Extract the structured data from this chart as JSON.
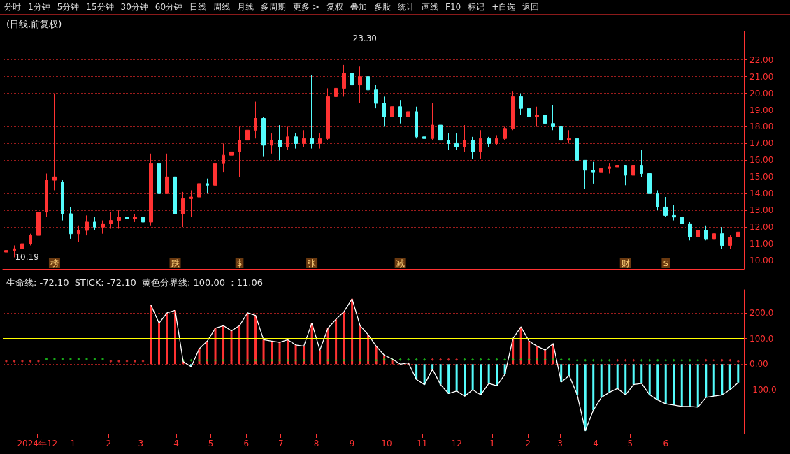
{
  "chart_data": [
    {
      "type": "other",
      "annotations": [
        "分时",
        "1分钟",
        "5分钟",
        "15分钟",
        "30分钟",
        "60分钟",
        "日线",
        "周线",
        "月线",
        "多周期",
        "更多 >",
        "复权",
        "叠加",
        "多股",
        "统计",
        "画线",
        "F10",
        "标记",
        "+自选",
        "返回"
      ]
    },
    {
      "type": "candlestick",
      "title": "(日线,前复权)",
      "x": [
        "2024-11-04",
        "2024-11-11",
        "2024-11-18",
        "2024-11-25",
        "2024-12-02",
        "2024-12-09",
        "2024-12-16",
        "2024-12-23",
        "2024-12-30",
        "2025-01-06",
        "2025-01-13",
        "2025-01-20",
        "2025-01-27",
        "2025-02-03",
        "2025-02-10",
        "2025-02-17",
        "2025-02-24",
        "2025-03-03",
        "2025-03-10",
        "2025-03-17",
        "2025-03-24",
        "2025-03-31",
        "2025-04-07",
        "2025-04-14",
        "2025-04-21",
        "2025-04-28",
        "2025-05-05",
        "2025-05-12",
        "2025-05-19",
        "2025-05-26",
        "2025-06-02",
        "2025-06-09",
        "2025-06-16",
        "2025-06-23",
        "2025-06-30",
        "2025-07-07",
        "2025-07-14",
        "2025-07-21",
        "2025-07-28",
        "2025-08-04",
        "2025-08-11",
        "2025-08-18",
        "2025-08-25",
        "2025-09-01",
        "2025-09-08",
        "2025-09-15",
        "2025-09-22",
        "2025-09-29",
        "2025-10-06",
        "2025-10-13",
        "2025-10-20",
        "2025-10-27",
        "2025-11-03",
        "2025-11-10",
        "2025-11-17",
        "2025-11-24",
        "2025-12-01",
        "2025-12-08",
        "2025-12-15",
        "2025-12-22",
        "2025-12-29",
        "2026-01-05",
        "2026-01-12",
        "2026-01-19",
        "2026-01-26",
        "2026-02-02",
        "2026-02-09",
        "2026-02-16",
        "2026-02-23",
        "2026-03-02",
        "2026-03-09",
        "2026-03-16",
        "2026-03-23",
        "2026-03-30",
        "2026-04-06",
        "2026-04-13",
        "2026-04-20",
        "2026-04-27",
        "2026-05-04",
        "2026-05-11",
        "2026-05-18",
        "2026-05-25",
        "2026-06-01",
        "2026-06-08",
        "2026-06-15",
        "2026-06-22",
        "2026-06-29",
        "2026-07-06",
        "2026-07-13",
        "2026-07-20",
        "2026-07-27",
        "2026-08-03"
      ],
      "xlim": [
        "2024-11-01",
        "2026-08-08"
      ],
      "ylim": [
        9.5,
        23.7
      ],
      "yticks": [
        {
          "value": 10,
          "label": "10.00"
        },
        {
          "value": 11,
          "label": "11.00"
        },
        {
          "value": 12,
          "label": "12.00"
        },
        {
          "value": 13,
          "label": "13.00"
        },
        {
          "value": 14,
          "label": "14.00"
        },
        {
          "value": 15,
          "label": "15.00"
        },
        {
          "value": 16,
          "label": "16.00"
        },
        {
          "value": 17,
          "label": "17.00"
        },
        {
          "value": 18,
          "label": "18.00"
        },
        {
          "value": 19,
          "label": "19.00"
        },
        {
          "value": 20,
          "label": "20.00"
        },
        {
          "value": 21,
          "label": "21.00"
        },
        {
          "value": 22,
          "label": "22.00"
        }
      ],
      "grid": "y",
      "tick_labels": "y",
      "annotations": [
        {
          "text": "23.30",
          "x": "2025-09-01",
          "y": 23.3
        },
        {
          "text": "10.19",
          "x": "2024-11-11",
          "y": 10.19
        },
        {
          "text": "榜",
          "x": "2024-12-16"
        },
        {
          "text": "跌",
          "x": "2025-03-31"
        },
        {
          "text": "$",
          "x": "2025-05-26"
        },
        {
          "text": "张",
          "x": "2025-07-28"
        },
        {
          "text": "减",
          "x": "2025-10-13"
        },
        {
          "text": "财",
          "x": "2026-04-27"
        },
        {
          "text": "$",
          "x": "2026-06-01"
        }
      ],
      "series": [
        {
          "type": "candlestick",
          "ohlc": [
            [
              10.5,
              10.8,
              10.3,
              10.6
            ],
            [
              10.6,
              10.9,
              10.19,
              10.7
            ],
            [
              10.7,
              11.4,
              10.5,
              11.0
            ],
            [
              11.0,
              11.6,
              10.9,
              11.5
            ],
            [
              11.5,
              13.7,
              11.4,
              12.9
            ],
            [
              12.9,
              15.2,
              12.6,
              14.8
            ],
            [
              14.8,
              20.0,
              14.2,
              15.0
            ],
            [
              14.7,
              14.8,
              12.4,
              12.8
            ],
            [
              12.8,
              13.2,
              11.3,
              11.6
            ],
            [
              11.6,
              12.1,
              11.1,
              11.8
            ],
            [
              11.8,
              12.7,
              11.5,
              12.3
            ],
            [
              12.3,
              12.6,
              11.8,
              12.0
            ],
            [
              12.0,
              12.4,
              11.6,
              12.2
            ],
            [
              12.2,
              12.9,
              11.9,
              12.4
            ],
            [
              12.4,
              13.0,
              11.9,
              12.6
            ],
            [
              12.6,
              12.8,
              12.2,
              12.5
            ],
            [
              12.5,
              12.8,
              12.3,
              12.6
            ],
            [
              12.6,
              12.7,
              12.1,
              12.3
            ],
            [
              12.3,
              16.4,
              12.1,
              15.8
            ],
            [
              15.8,
              16.8,
              13.2,
              14.0
            ],
            [
              14.0,
              16.4,
              14.0,
              15.0
            ],
            [
              15.0,
              17.9,
              12.0,
              12.8
            ],
            [
              12.8,
              14.1,
              12.0,
              13.7
            ],
            [
              13.7,
              14.2,
              12.6,
              13.8
            ],
            [
              13.8,
              14.9,
              13.6,
              14.6
            ],
            [
              14.6,
              14.9,
              14.0,
              14.5
            ],
            [
              14.5,
              16.4,
              14.4,
              15.8
            ],
            [
              15.8,
              17.0,
              15.3,
              16.3
            ],
            [
              16.3,
              16.7,
              15.4,
              16.5
            ],
            [
              16.5,
              18.0,
              15.0,
              17.2
            ],
            [
              17.2,
              19.2,
              16.0,
              17.8
            ],
            [
              17.8,
              19.5,
              17.3,
              18.5
            ],
            [
              18.5,
              18.6,
              16.2,
              16.9
            ],
            [
              16.9,
              17.6,
              16.4,
              17.2
            ],
            [
              17.2,
              18.1,
              16.0,
              16.8
            ],
            [
              16.8,
              18.0,
              16.6,
              17.4
            ],
            [
              17.4,
              17.6,
              16.7,
              17.0
            ],
            [
              17.0,
              17.8,
              16.8,
              17.3
            ],
            [
              17.3,
              21.1,
              16.7,
              17.0
            ],
            [
              17.0,
              17.6,
              16.7,
              17.3
            ],
            [
              17.3,
              20.3,
              17.2,
              19.8
            ],
            [
              19.8,
              20.8,
              18.9,
              20.3
            ],
            [
              20.3,
              21.7,
              19.8,
              21.2
            ],
            [
              21.2,
              23.3,
              19.4,
              20.5
            ],
            [
              20.5,
              21.6,
              19.4,
              21.0
            ],
            [
              21.0,
              21.4,
              19.8,
              20.2
            ],
            [
              20.2,
              20.5,
              19.1,
              19.4
            ],
            [
              19.4,
              19.8,
              18.0,
              18.6
            ],
            [
              18.6,
              19.6,
              17.9,
              19.2
            ],
            [
              19.2,
              19.6,
              18.2,
              18.6
            ],
            [
              18.6,
              19.2,
              18.2,
              18.9
            ],
            [
              18.9,
              19.2,
              17.3,
              17.4
            ],
            [
              17.4,
              17.6,
              17.2,
              17.3
            ],
            [
              17.3,
              19.4,
              17.2,
              18.1
            ],
            [
              18.1,
              18.8,
              16.4,
              17.2
            ],
            [
              17.2,
              17.6,
              16.6,
              17.0
            ],
            [
              17.0,
              17.6,
              16.6,
              16.8
            ],
            [
              16.8,
              18.1,
              16.5,
              17.2
            ],
            [
              17.2,
              17.4,
              16.1,
              16.5
            ],
            [
              16.5,
              17.8,
              16.1,
              17.3
            ],
            [
              17.3,
              17.4,
              16.8,
              17.0
            ],
            [
              17.0,
              17.5,
              16.9,
              17.3
            ],
            [
              17.3,
              18.0,
              17.2,
              17.9
            ],
            [
              17.9,
              20.1,
              17.8,
              19.8
            ],
            [
              19.8,
              20.0,
              18.7,
              19.1
            ],
            [
              19.1,
              19.6,
              18.4,
              18.6
            ],
            [
              18.6,
              19.2,
              18.0,
              18.7
            ],
            [
              18.7,
              18.8,
              17.9,
              18.2
            ],
            [
              18.2,
              19.3,
              17.8,
              18.0
            ],
            [
              18.0,
              18.0,
              16.6,
              17.2
            ],
            [
              17.2,
              17.8,
              17.0,
              17.3
            ],
            [
              17.3,
              17.5,
              16.0,
              16.0
            ],
            [
              16.0,
              16.0,
              14.3,
              15.4
            ],
            [
              15.4,
              15.9,
              14.6,
              15.3
            ],
            [
              15.3,
              15.8,
              14.6,
              15.5
            ],
            [
              15.5,
              15.8,
              15.2,
              15.6
            ],
            [
              15.6,
              15.9,
              15.4,
              15.7
            ],
            [
              15.7,
              15.7,
              14.5,
              15.1
            ],
            [
              15.1,
              15.9,
              15.0,
              15.7
            ],
            [
              15.7,
              16.6,
              15.0,
              15.2
            ],
            [
              15.2,
              15.2,
              13.9,
              14.0
            ],
            [
              14.0,
              14.2,
              13.0,
              13.2
            ],
            [
              13.2,
              13.8,
              12.6,
              12.7
            ],
            [
              12.7,
              13.3,
              12.4,
              12.6
            ],
            [
              12.6,
              12.9,
              12.1,
              12.2
            ],
            [
              12.2,
              12.3,
              11.2,
              11.4
            ],
            [
              11.4,
              11.9,
              11.1,
              11.8
            ],
            [
              11.8,
              12.1,
              11.2,
              11.3
            ],
            [
              11.3,
              11.9,
              11.0,
              11.6
            ],
            [
              11.6,
              12.0,
              10.7,
              10.9
            ],
            [
              10.9,
              11.5,
              10.7,
              11.4
            ],
            [
              11.4,
              11.8,
              11.3,
              11.7
            ]
          ],
          "colors": [
            "#ff3232",
            "#ff3232",
            "#ff3232",
            "#ff3232",
            "#ff3232",
            "#ff3232",
            "#ff3232",
            "#54fcfc",
            "#54fcfc",
            "#ff3232",
            "#ff3232",
            "#54fcfc",
            "#ff3232",
            "#ff3232",
            "#ff3232",
            "#54fcfc",
            "#ff3232",
            "#54fcfc",
            "#ff3232",
            "#54fcfc",
            "#ff3232",
            "#54fcfc",
            "#ff3232",
            "#ff3232",
            "#ff3232",
            "#54fcfc",
            "#ff3232",
            "#ff3232",
            "#ff3232",
            "#ff3232",
            "#ff3232",
            "#ff3232",
            "#54fcfc",
            "#ff3232",
            "#54fcfc",
            "#ff3232",
            "#54fcfc",
            "#ff3232",
            "#54fcfc",
            "#ff3232",
            "#ff3232",
            "#ff3232",
            "#ff3232",
            "#54fcfc",
            "#ff3232",
            "#54fcfc",
            "#54fcfc",
            "#54fcfc",
            "#ff3232",
            "#54fcfc",
            "#ff3232",
            "#54fcfc",
            "#54fcfc",
            "#ff3232",
            "#54fcfc",
            "#54fcfc",
            "#54fcfc",
            "#ff3232",
            "#54fcfc",
            "#ff3232",
            "#54fcfc",
            "#ff3232",
            "#ff3232",
            "#ff3232",
            "#54fcfc",
            "#54fcfc",
            "#ff3232",
            "#54fcfc",
            "#54fcfc",
            "#54fcfc",
            "#ff3232",
            "#54fcfc",
            "#54fcfc",
            "#54fcfc",
            "#ff3232",
            "#ff3232",
            "#ff3232",
            "#54fcfc",
            "#ff3232",
            "#54fcfc",
            "#54fcfc",
            "#54fcfc",
            "#54fcfc",
            "#54fcfc",
            "#54fcfc",
            "#54fcfc",
            "#ff3232",
            "#54fcfc",
            "#ff3232",
            "#54fcfc",
            "#ff3232",
            "#ff3232"
          ]
        }
      ]
    },
    {
      "type": "bar",
      "title": "生命线: -72.10  STICK: -72.10  黄色分界线: 100.00  : 11.06",
      "x": [
        "2024-11-04",
        "2024-11-11",
        "2024-11-18",
        "2024-11-25",
        "2024-12-02",
        "2024-12-09",
        "2024-12-16",
        "2024-12-23",
        "2024-12-30",
        "2025-01-06",
        "2025-01-13",
        "2025-01-20",
        "2025-01-27",
        "2025-02-03",
        "2025-02-10",
        "2025-02-17",
        "2025-02-24",
        "2025-03-03",
        "2025-03-10",
        "2025-03-17",
        "2025-03-24",
        "2025-03-31",
        "2025-04-07",
        "2025-04-14",
        "2025-04-21",
        "2025-04-28",
        "2025-05-05",
        "2025-05-12",
        "2025-05-19",
        "2025-05-26",
        "2025-06-02",
        "2025-06-09",
        "2025-06-16",
        "2025-06-23",
        "2025-06-30",
        "2025-07-07",
        "2025-07-14",
        "2025-07-21",
        "2025-07-28",
        "2025-08-04",
        "2025-08-11",
        "2025-08-18",
        "2025-08-25",
        "2025-09-01",
        "2025-09-08",
        "2025-09-15",
        "2025-09-22",
        "2025-09-29",
        "2025-10-06",
        "2025-10-13",
        "2025-10-20",
        "2025-10-27",
        "2025-11-03",
        "2025-11-10",
        "2025-11-17",
        "2025-11-24",
        "2025-12-01",
        "2025-12-08",
        "2025-12-15",
        "2025-12-22",
        "2025-12-29",
        "2026-01-05",
        "2026-01-12",
        "2026-01-19",
        "2026-01-26",
        "2026-02-02",
        "2026-02-09",
        "2026-02-16",
        "2026-02-23",
        "2026-03-02",
        "2026-03-09",
        "2026-03-16",
        "2026-03-23",
        "2026-03-30",
        "2026-04-06",
        "2026-04-13",
        "2026-04-20",
        "2026-04-27",
        "2026-05-04",
        "2026-05-11",
        "2026-05-18",
        "2026-05-25",
        "2026-06-01",
        "2026-06-08",
        "2026-06-15",
        "2026-06-22",
        "2026-06-29",
        "2026-07-06",
        "2026-07-13",
        "2026-07-20",
        "2026-07-27",
        "2026-08-03"
      ],
      "xlim": [
        "2024-11-01",
        "2026-08-08"
      ],
      "xticks": [
        {
          "value": "2024-12-01",
          "label": "2024年12"
        },
        {
          "value": "2025-01-01",
          "label": "1"
        },
        {
          "value": "2025-02-01",
          "label": "2"
        },
        {
          "value": "2025-03-01",
          "label": "3"
        },
        {
          "value": "2025-04-01",
          "label": "4"
        },
        {
          "value": "2025-05-01",
          "label": "5"
        },
        {
          "value": "2025-06-01",
          "label": "6"
        },
        {
          "value": "2025-07-01",
          "label": "7"
        },
        {
          "value": "2025-08-01",
          "label": "8"
        },
        {
          "value": "2025-09-01",
          "label": "9"
        },
        {
          "value": "2025-10-01",
          "label": "10"
        },
        {
          "value": "2025-11-01",
          "label": "11"
        },
        {
          "value": "2025-12-01",
          "label": "12"
        },
        {
          "value": "2026-01-01",
          "label": "1"
        },
        {
          "value": "2026-02-01",
          "label": "2"
        },
        {
          "value": "2026-03-01",
          "label": "3"
        },
        {
          "value": "2026-04-01",
          "label": "4"
        },
        {
          "value": "2026-05-01",
          "label": "5"
        },
        {
          "value": "2026-06-01",
          "label": "6"
        }
      ],
      "ylim": [
        -272,
        290
      ],
      "yticks": [
        {
          "value": -100,
          "label": "-100.0"
        },
        {
          "value": 0,
          "label": "0.00"
        },
        {
          "value": 100,
          "label": "100.0"
        },
        {
          "value": 200,
          "label": "200.0"
        }
      ],
      "grid": "y",
      "ref_lines": [
        {
          "axis": "y",
          "value": 100,
          "color": "#ffff00"
        }
      ],
      "series": [
        {
          "type": "bar",
          "values": [
            null,
            null,
            null,
            null,
            null,
            null,
            null,
            null,
            null,
            null,
            null,
            null,
            null,
            null,
            null,
            null,
            null,
            null,
            230,
            160,
            200,
            210,
            10,
            -10,
            60,
            90,
            140,
            150,
            130,
            150,
            200,
            190,
            95,
            90,
            85,
            95,
            75,
            70,
            160,
            55,
            140,
            175,
            205,
            255,
            150,
            115,
            70,
            35,
            20,
            0,
            5,
            -60,
            -80,
            -20,
            -80,
            -115,
            -105,
            -125,
            -100,
            -120,
            -75,
            -85,
            -40,
            100,
            145,
            90,
            70,
            55,
            80,
            -70,
            -45,
            -120,
            -260,
            -180,
            -130,
            -110,
            -95,
            -120,
            -80,
            -75,
            -120,
            -140,
            -155,
            -160,
            -165,
            -165,
            -168,
            -130,
            -125,
            -120,
            -100,
            -72
          ],
          "colors": [
            null,
            null,
            null,
            null,
            null,
            null,
            null,
            null,
            null,
            null,
            null,
            null,
            null,
            null,
            null,
            null,
            null,
            null,
            "#ff3232",
            "#ff3232",
            "#ff3232",
            "#ff3232",
            "#ff3232",
            "#54fcfc",
            "#ff3232",
            "#ff3232",
            "#ff3232",
            "#ff3232",
            "#ff3232",
            "#ff3232",
            "#ff3232",
            "#ff3232",
            "#ff3232",
            "#ff3232",
            "#ff3232",
            "#ff3232",
            "#ff3232",
            "#ff3232",
            "#ff3232",
            "#ff3232",
            "#ff3232",
            "#ff3232",
            "#ff3232",
            "#ff3232",
            "#ff3232",
            "#ff3232",
            "#ff3232",
            "#ff3232",
            "#ff3232",
            "#ff3232",
            "#ff3232",
            "#54fcfc",
            "#54fcfc",
            "#54fcfc",
            "#54fcfc",
            "#54fcfc",
            "#54fcfc",
            "#54fcfc",
            "#54fcfc",
            "#54fcfc",
            "#54fcfc",
            "#54fcfc",
            "#54fcfc",
            "#ff3232",
            "#ff3232",
            "#ff3232",
            "#ff3232",
            "#ff3232",
            "#ff3232",
            "#54fcfc",
            "#54fcfc",
            "#54fcfc",
            "#54fcfc",
            "#54fcfc",
            "#54fcfc",
            "#54fcfc",
            "#54fcfc",
            "#54fcfc",
            "#54fcfc",
            "#54fcfc",
            "#54fcfc",
            "#54fcfc",
            "#54fcfc",
            "#54fcfc",
            "#54fcfc",
            "#54fcfc",
            "#54fcfc",
            "#54fcfc",
            "#54fcfc",
            "#54fcfc",
            "#54fcfc",
            "#54fcfc"
          ]
        },
        {
          "type": "line",
          "color": "#ffffff",
          "values": [
            null,
            null,
            null,
            null,
            null,
            null,
            null,
            null,
            null,
            null,
            null,
            null,
            null,
            null,
            null,
            null,
            null,
            null,
            230,
            160,
            200,
            210,
            10,
            -10,
            60,
            90,
            140,
            150,
            130,
            150,
            200,
            190,
            95,
            90,
            85,
            95,
            75,
            70,
            160,
            55,
            140,
            175,
            205,
            255,
            150,
            115,
            70,
            35,
            20,
            0,
            5,
            -60,
            -80,
            -20,
            -80,
            -115,
            -105,
            -125,
            -100,
            -120,
            -75,
            -85,
            -40,
            100,
            145,
            90,
            70,
            55,
            80,
            -70,
            -45,
            -120,
            -260,
            -180,
            -130,
            -110,
            -95,
            -120,
            -80,
            -75,
            -120,
            -140,
            -155,
            -160,
            -165,
            -165,
            -168,
            -130,
            -125,
            -120,
            -100,
            -72
          ]
        },
        {
          "type": "scatter",
          "marker": "diamond",
          "values": [
            12,
            12,
            12,
            12,
            12,
            20,
            20,
            20,
            20,
            20,
            20,
            20,
            20,
            12,
            12,
            12,
            12,
            12,
            15,
            15,
            15,
            15,
            15,
            15,
            15,
            15,
            15,
            15,
            15,
            15,
            15,
            15,
            15,
            15,
            15,
            15,
            15,
            15,
            15,
            15,
            15,
            15,
            15,
            15,
            15,
            15,
            15,
            18,
            18,
            18,
            18,
            18,
            18,
            18,
            18,
            18,
            18,
            18,
            18,
            18,
            18,
            18,
            18,
            18,
            18,
            18,
            18,
            18,
            18,
            18,
            18,
            15,
            15,
            15,
            15,
            15,
            15,
            15,
            15,
            15,
            15,
            15,
            15,
            15,
            15,
            15,
            15,
            15,
            15,
            15,
            15,
            11
          ],
          "colors": [
            "#ff3232",
            "#ff3232",
            "#ff3232",
            "#ff3232",
            "#ff3232",
            "#1ed21e",
            "#1ed21e",
            "#1ed21e",
            "#1ed21e",
            "#1ed21e",
            "#1ed21e",
            "#1ed21e",
            "#1ed21e",
            "#ff3232",
            "#ff3232",
            "#ff3232",
            "#ff3232",
            "#ff3232",
            "#ff3232",
            "#ff3232",
            "#ff3232",
            "#ff3232",
            "#1ed21e",
            "#1ed21e",
            "#1ed21e",
            "#1ed21e",
            "#1ed21e",
            "#1ed21e",
            "#ff3232",
            "#ff3232",
            "#1ed21e",
            "#1ed21e",
            "#1ed21e",
            "#1ed21e",
            "#1ed21e",
            "#1ed21e",
            "#1ed21e",
            "#1ed21e",
            "#ff3232",
            "#ff3232",
            "#1ed21e",
            "#1ed21e",
            "#1ed21e",
            "#1ed21e",
            "#1ed21e",
            "#1ed21e",
            "#1ed21e",
            "#1ed21e",
            "#1ed21e",
            "#1ed21e",
            "#1ed21e",
            "#1ed21e",
            "#1ed21e",
            "#ff3232",
            "#ff3232",
            "#ff3232",
            "#ff3232",
            "#1ed21e",
            "#1ed21e",
            "#1ed21e",
            "#1ed21e",
            "#1ed21e",
            "#1ed21e",
            "#1ed21e",
            "#1ed21e",
            "#1ed21e",
            "#1ed21e",
            "#1ed21e",
            "#1ed21e",
            "#1ed21e",
            "#1ed21e",
            "#1ed21e",
            "#1ed21e",
            "#1ed21e",
            "#1ed21e",
            "#1ed21e",
            "#ff3232",
            "#ff3232",
            "#ff3232",
            "#1ed21e",
            "#1ed21e",
            "#1ed21e",
            "#1ed21e",
            "#1ed21e",
            "#1ed21e",
            "#1ed21e",
            "#1ed21e",
            "#ff3232",
            "#ff3232",
            "#ff3232",
            "#ff3232",
            "#ff3232"
          ]
        }
      ]
    }
  ]
}
